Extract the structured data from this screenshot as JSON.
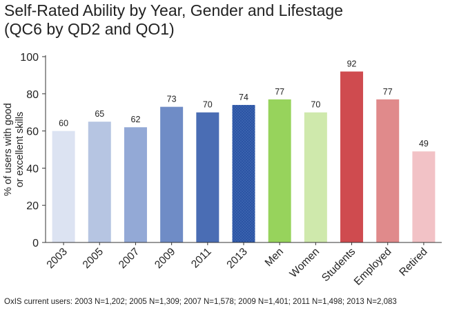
{
  "chart_data": {
    "type": "bar",
    "title": "Self-Rated Ability by Year, Gender and Lifestage\n(QC6 by QD2 and QO1)",
    "ylabel": "% of users with good or excellent skills",
    "ylabel_lines": [
      "% of users with good",
      "or excellent skills"
    ],
    "xlabel": "",
    "ylim": [
      0,
      100
    ],
    "yticks": [
      0,
      20,
      40,
      60,
      80,
      100
    ],
    "grid": false,
    "categories": [
      "2003",
      "2005",
      "2007",
      "2009",
      "2011",
      "2013",
      "Men",
      "Women",
      "Students",
      "Employed",
      "Retired"
    ],
    "values": [
      60,
      65,
      62,
      73,
      70,
      74,
      77,
      70,
      92,
      77,
      49
    ],
    "data_labels": [
      "60",
      "65",
      "62",
      "73",
      "70",
      "74",
      "77",
      "70",
      "92",
      "77",
      "49"
    ],
    "colors": [
      "#dce3f2",
      "#b6c5e2",
      "#93a9d6",
      "#6f8cc6",
      "#4a6db4",
      "#2b54a4",
      "#97d35c",
      "#cfe9ac",
      "#cf4b4f",
      "#e08a8b",
      "#f2c2c6"
    ]
  },
  "footnote": "OxIS current users: 2003 N=1,202; 2005 N=1,309; 2007 N=1,578; 2009 N=1,401; 2011 N=1,498; 2013 N=2,083"
}
